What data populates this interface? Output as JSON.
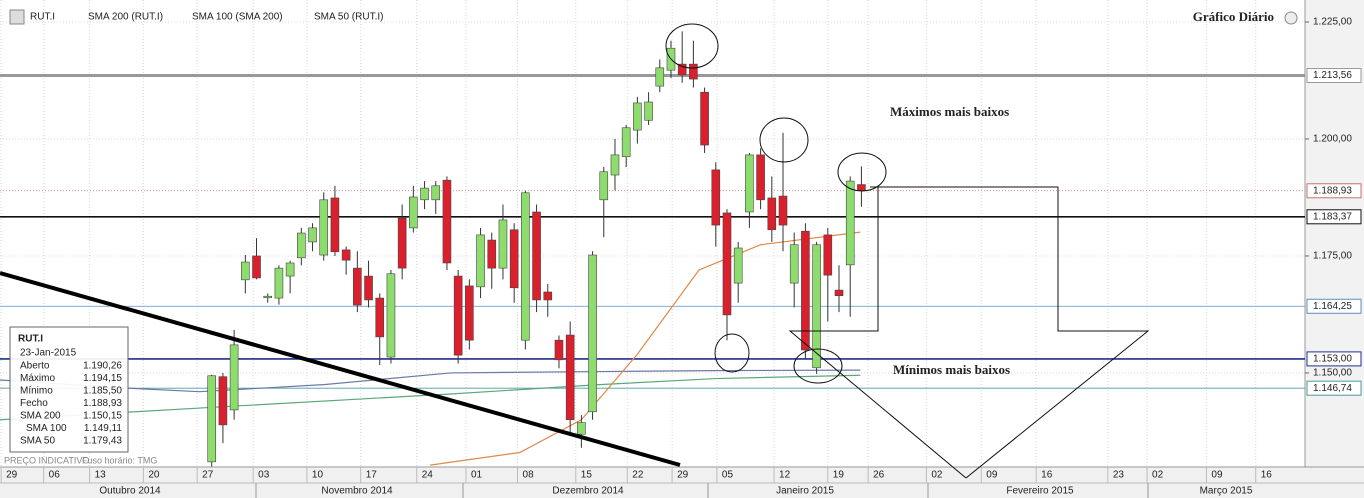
{
  "chart_data": {
    "type": "candlestick",
    "title": "Gráfico Diário",
    "symbol": "RUT.I",
    "annotations": [
      "Máximos mais baixos",
      "Mínimos mais baixos"
    ],
    "footer": [
      "PREÇO INDICATIVO",
      "Fuso horário: TMG"
    ],
    "up_color": "#8fdc6e",
    "down_color": "#d9202c",
    "xlim": [
      -18.9,
      97.6
    ],
    "ylim": [
      1129.9,
      1229.7
    ],
    "yticks": [
      {
        "value": 1225,
        "label": "1.225,00"
      },
      {
        "value": 1200,
        "label": "1.200,00"
      },
      {
        "value": 1175,
        "label": "1.175,00"
      },
      {
        "value": 1150,
        "label": "1.150,00"
      }
    ],
    "levels": [
      {
        "value": 1213.56,
        "label": "1.213,56",
        "color": "#999999"
      },
      {
        "value": 1188.93,
        "label": "1.188,93",
        "color": "#c87070"
      },
      {
        "value": 1183.37,
        "label": "1.183,37",
        "color": "#111111"
      },
      {
        "value": 1164.25,
        "label": "1.164,25",
        "color": "#5b8fc0"
      },
      {
        "value": 1153,
        "label": "1.153,00",
        "color": "#1f2f8a"
      },
      {
        "value": 1146.74,
        "label": "1.146,74",
        "color": "#4a9aa0"
      }
    ],
    "xticks": [
      {
        "value": -18.8,
        "label": "29"
      },
      {
        "value": -15,
        "label": "06"
      },
      {
        "value": -10.9,
        "label": "13"
      },
      {
        "value": -6.1,
        "label": "20"
      },
      {
        "value": -1.3,
        "label": "27"
      },
      {
        "value": 3.7,
        "label": "03"
      },
      {
        "value": 8.5,
        "label": "10"
      },
      {
        "value": 13.3,
        "label": "17"
      },
      {
        "value": 18.3,
        "label": "24"
      },
      {
        "value": 22.7,
        "label": "01"
      },
      {
        "value": 27.3,
        "label": "08"
      },
      {
        "value": 32.5,
        "label": "15"
      },
      {
        "value": 37.1,
        "label": "22"
      },
      {
        "value": 41.1,
        "label": "29"
      },
      {
        "value": 45.1,
        "label": "05"
      },
      {
        "value": 50.2,
        "label": "12"
      },
      {
        "value": 55,
        "label": "19"
      },
      {
        "value": 58.6,
        "label": "26"
      },
      {
        "value": 63.8,
        "label": "02"
      },
      {
        "value": 68.7,
        "label": "09"
      },
      {
        "value": 73.6,
        "label": "16"
      },
      {
        "value": 80,
        "label": "23"
      },
      {
        "value": 83.5,
        "label": "02"
      },
      {
        "value": 88.8,
        "label": "09"
      },
      {
        "value": 93.2,
        "label": "16"
      }
    ],
    "months": [
      "Outubro 2014",
      "Novembro 2014",
      "Dezembro 2014",
      "Janeiro 2015",
      "Fevereiro 2015",
      "Março 2015"
    ],
    "x": [
      0,
      1,
      2,
      3,
      4,
      5,
      6,
      7,
      8,
      9,
      10,
      11,
      12,
      13,
      14,
      15,
      16,
      17,
      18,
      19,
      20,
      21,
      22,
      23,
      24,
      25,
      26,
      27,
      28,
      29,
      30,
      31,
      32,
      33,
      34,
      35,
      36,
      37,
      38,
      39,
      40,
      41,
      42,
      43,
      44,
      45,
      46,
      47,
      48,
      49,
      50,
      51,
      52,
      53,
      54,
      55,
      56,
      57,
      58
    ],
    "open": [
      1131,
      1149.2,
      1142.1,
      1169.9,
      1175,
      1166.1,
      1166,
      1170.7,
      1174.6,
      1178,
      1175.2,
      1187.4,
      1176.3,
      1172.4,
      1170.7,
      1166,
      1153.4,
      1183.1,
      1181,
      1187,
      1187,
      1191.2,
      1170.7,
      1168.6,
      1168.4,
      1178.4,
      1172.4,
      1180.6,
      1157,
      1184.4,
      1167.3,
      1157,
      1158.1,
      1136.9,
      1141.7,
      1187,
      1192.3,
      1196.2,
      1201.9,
      1204,
      1211.3,
      1214.7,
      1216,
      1216,
      1210,
      1193.4,
      1184.2,
      1169.2,
      1184.4,
      1196.6,
      1187.4,
      1187.8,
      1169.2,
      1180.3,
      1151.1,
      1179.5,
      1167.7,
      1173.1,
      1190.26
    ],
    "high": [
      1149.6,
      1150,
      1159.2,
      1175.2,
      1178.8,
      1167,
      1173,
      1174,
      1181,
      1182,
      1188.6,
      1190,
      1177,
      1176,
      1174,
      1167,
      1172,
      1186,
      1190,
      1191,
      1191,
      1192,
      1172,
      1170,
      1181,
      1180,
      1186,
      1182,
      1189,
      1186,
      1169,
      1158,
      1161,
      1141,
      1176,
      1194,
      1200,
      1203,
      1209,
      1210,
      1217,
      1221,
      1223,
      1221,
      1211,
      1195,
      1185,
      1178,
      1197,
      1198,
      1192,
      1201.3,
      1180,
      1182,
      1178,
      1181,
      1173,
      1192,
      1194.15
    ],
    "low": [
      1130,
      1135,
      1140,
      1167,
      1170,
      1165,
      1164.6,
      1167,
      1173,
      1176,
      1174,
      1175,
      1171,
      1163,
      1164,
      1151.7,
      1152,
      1170,
      1180,
      1185,
      1184,
      1172,
      1152,
      1155,
      1166,
      1168,
      1170,
      1165,
      1155,
      1163,
      1162,
      1151,
      1137,
      1134,
      1140,
      1179,
      1189,
      1194,
      1199,
      1203,
      1210,
      1213,
      1212,
      1211,
      1197,
      1177,
      1157,
      1165,
      1181,
      1185,
      1178,
      1176,
      1164,
      1153,
      1149.8,
      1161,
      1163,
      1162,
      1185.5
    ],
    "close": [
      1149.4,
      1138.9,
      1156,
      1173.7,
      1170.3,
      1166.4,
      1172.4,
      1173.5,
      1179.9,
      1181,
      1187,
      1175.9,
      1174.1,
      1164.5,
      1165.6,
      1157.7,
      1171.2,
      1172.4,
      1187.6,
      1189.5,
      1190,
      1173.5,
      1153.8,
      1157,
      1179.5,
      1172.4,
      1182.7,
      1168.2,
      1188.5,
      1165.6,
      1165.6,
      1152.8,
      1140,
      1139.4,
      1175.2,
      1193,
      1196.6,
      1202.4,
      1207.7,
      1207.9,
      1215.2,
      1219.4,
      1213.7,
      1212.8,
      1198.7,
      1181.6,
      1162.4,
      1176.7,
      1196.6,
      1187,
      1180.6,
      1181.6,
      1177.4,
      1154.9,
      1177.4,
      1170.9,
      1166.5,
      1191,
      1188.93
    ],
    "series": [
      {
        "name": "SMA 200",
        "legend": "SMA 200 (RUT.I)",
        "color": "#6a7aa8",
        "last_label": "1.150,15",
        "x": [
          -18.9,
          -8,
          -1.1,
          10,
          21.3,
          34.6,
          45,
          57.9
        ],
        "values": [
          1148.5,
          1146.8,
          1146,
          1147.5,
          1150,
          1150.3,
          1150.5,
          1150.6
        ]
      },
      {
        "name": "SMA 100",
        "legend": "SMA 100 (SMA 200)",
        "color": "#5aa87a",
        "last_label": "1.149,11",
        "x": [
          -18.9,
          -1.1,
          21.3,
          34.6,
          45,
          57.9
        ],
        "values": [
          1140,
          1142.5,
          1145.5,
          1147.5,
          1148.8,
          1149.5
        ]
      },
      {
        "name": "SMA 50",
        "legend": "SMA 50 (RUT.I)",
        "color": "#e0884a",
        "last_label": "1.179,43",
        "x": [
          19.5,
          27.5,
          33,
          38,
          43.5,
          49,
          57.9
        ],
        "values": [
          1130.3,
          1133,
          1140,
          1154,
          1172,
          1177.4,
          1180.1
        ]
      }
    ],
    "info": {
      "date": "23-Jan-2015",
      "rows": [
        [
          "Aberto",
          "1.190,26"
        ],
        [
          "Máximo",
          "1.194,15"
        ],
        [
          "Mínimo",
          "1.185,50"
        ],
        [
          "Fecho",
          "1.188,93"
        ]
      ]
    }
  }
}
